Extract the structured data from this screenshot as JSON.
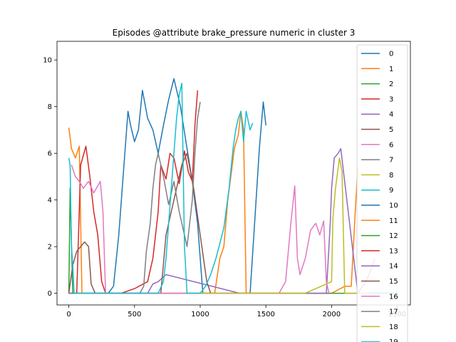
{
  "chart_data": {
    "type": "line",
    "title": "Episodes @attribute brake_pressure numeric in cluster 3",
    "xlabel": "",
    "ylabel": "",
    "xlim": [
      -90,
      2600
    ],
    "ylim": [
      -0.5,
      10.8
    ],
    "xticks": [
      0,
      500,
      1000,
      1500,
      2000,
      2500
    ],
    "yticks": [
      0,
      2,
      4,
      6,
      8,
      10
    ],
    "grid": false,
    "legend_position": "top-right",
    "colors": [
      "#1f77b4",
      "#ff7f0e",
      "#2ca02c",
      "#d62728",
      "#9467bd",
      "#8c564b",
      "#e377c2",
      "#7f7f7f",
      "#bcbd22",
      "#17becf"
    ],
    "series": [
      {
        "name": "0",
        "x": [
          0,
          250,
          300,
          340,
          380,
          420,
          450,
          470,
          500,
          530,
          560,
          600,
          640,
          680,
          720,
          760,
          800,
          850,
          900,
          940,
          980,
          1020,
          1100,
          1250,
          1380,
          1420,
          1450,
          1480,
          1500
        ],
        "y": [
          0,
          0,
          0,
          0.3,
          2.5,
          5.5,
          7.8,
          7.2,
          6.5,
          7.0,
          8.7,
          7.5,
          7.0,
          6.0,
          7.2,
          8.3,
          9.2,
          8.0,
          6.2,
          4.8,
          3.0,
          0,
          0,
          0,
          0,
          3.5,
          6.2,
          8.2,
          7.2
        ]
      },
      {
        "name": "1",
        "x": [
          0,
          20,
          50,
          80,
          100,
          130,
          170,
          250,
          300,
          500,
          900,
          1110,
          1150,
          1180,
          1210,
          1240,
          1260,
          1290,
          1310,
          1330,
          1350,
          1380,
          1450,
          1500,
          1560,
          1600,
          1680,
          1720,
          2000,
          2100,
          2150,
          2180,
          2200
        ],
        "y": [
          7.1,
          6.2,
          5.8,
          6.3,
          0,
          0,
          0,
          0,
          0,
          0,
          0,
          0,
          1.5,
          2.0,
          4.0,
          5.3,
          6.2,
          6.8,
          7.8,
          7.0,
          0,
          0,
          0,
          0,
          0,
          0,
          0,
          0,
          0,
          0.3,
          0.3,
          3.5,
          5.4
        ]
      },
      {
        "name": "2",
        "x": [
          0,
          10,
          30,
          2500
        ],
        "y": [
          0,
          4.5,
          0,
          0
        ]
      },
      {
        "name": "3",
        "x": [
          0,
          60,
          90,
          130,
          160,
          190,
          220,
          250,
          280,
          320,
          350,
          400,
          500,
          600,
          640,
          680,
          700,
          740,
          770,
          800,
          840,
          880,
          910,
          940,
          960,
          980
        ],
        "y": [
          0,
          0,
          5.5,
          6.3,
          5.0,
          3.5,
          2.5,
          0.5,
          0,
          0,
          0,
          0,
          0.2,
          0.5,
          1.5,
          3.5,
          5.5,
          4.9,
          6.0,
          5.8,
          4.7,
          6.1,
          5.2,
          4.8,
          7.2,
          8.7
        ]
      },
      {
        "name": "4",
        "x": [
          0,
          100,
          600,
          640,
          680,
          740,
          1300,
          1800,
          1850,
          1900,
          1940,
          1960,
          1990,
          2000,
          2020,
          2050,
          2070,
          2200,
          2260,
          2300,
          2330
        ],
        "y": [
          0,
          0,
          0,
          0.4,
          0.5,
          0.8,
          0,
          0,
          0,
          0,
          0,
          0,
          3.0,
          4.5,
          5.8,
          6.0,
          6.2,
          0,
          0.5,
          1.0,
          1.5
        ]
      },
      {
        "name": "5",
        "x": [
          0,
          30,
          60,
          90,
          120,
          150,
          170,
          200,
          300,
          600,
          650,
          700,
          740,
          780,
          820,
          860,
          900,
          950,
          1000,
          1050,
          1080,
          1110
        ],
        "y": [
          0,
          1.2,
          1.8,
          2.0,
          2.2,
          2.0,
          0.4,
          0,
          0,
          0,
          0,
          0,
          2.5,
          3.5,
          4.5,
          5.5,
          6.0,
          4.5,
          2.5,
          0.5,
          0,
          0
        ]
      },
      {
        "name": "6",
        "x": [
          20,
          50,
          80,
          110,
          150,
          190,
          240,
          260,
          280,
          1500,
          1600,
          1650,
          1690,
          1720,
          1740,
          1760,
          1800,
          1840,
          1880,
          1910,
          1940,
          1960,
          1980
        ],
        "y": [
          5.5,
          5.0,
          4.8,
          4.5,
          4.8,
          4.3,
          4.8,
          3.5,
          0,
          0,
          0,
          0.5,
          3.0,
          4.6,
          1.5,
          0.8,
          1.5,
          2.7,
          3.0,
          2.5,
          3.1,
          0.5,
          0
        ]
      },
      {
        "name": "7",
        "x": [
          0,
          400,
          540,
          570,
          590,
          620,
          640,
          660,
          680,
          700,
          720,
          760,
          800,
          840,
          880,
          900,
          920,
          940,
          960,
          980,
          1000
        ],
        "y": [
          0,
          0,
          0,
          0.3,
          1.8,
          3.0,
          4.5,
          5.5,
          6.0,
          5.5,
          5.0,
          3.8,
          4.8,
          3.5,
          2.5,
          2.0,
          3.0,
          4.0,
          6.0,
          7.5,
          8.2
        ]
      },
      {
        "name": "8",
        "x": [
          900,
          1000,
          1400,
          1800,
          2000,
          2010,
          2030,
          2060,
          2080,
          2100,
          2500
        ],
        "y": [
          0,
          0,
          0,
          0,
          0.5,
          3.2,
          4.5,
          5.8,
          5.2,
          0,
          0
        ]
      },
      {
        "name": "9",
        "x": [
          0,
          10,
          20,
          30,
          40,
          600,
          680,
          720,
          740,
          760,
          780,
          800,
          820,
          840,
          860,
          880,
          900,
          1000,
          1040,
          1080,
          1120,
          1180,
          1220,
          1250,
          1270,
          1290,
          1310,
          1330,
          1350,
          1380,
          1400
        ],
        "y": [
          5.8,
          5.5,
          2.0,
          1.2,
          0,
          0,
          0,
          0.5,
          1.5,
          3.0,
          4.5,
          6.0,
          7.5,
          8.5,
          9.0,
          2.0,
          0,
          0,
          0.3,
          0.8,
          1.5,
          2.8,
          4.5,
          6.2,
          7.0,
          7.5,
          7.8,
          6.5,
          7.8,
          7.0,
          7.3
        ]
      },
      {
        "name": "10",
        "x": [
          2400,
          2450,
          2500
        ],
        "y": [
          0,
          0,
          0
        ]
      },
      {
        "name": "11",
        "x": [
          2300,
          2400,
          2500
        ],
        "y": [
          0,
          0,
          0
        ]
      },
      {
        "name": "12",
        "x": [
          2300,
          2400,
          2500
        ],
        "y": [
          0,
          0,
          0
        ]
      },
      {
        "name": "13",
        "x": [
          2300,
          2400,
          2500
        ],
        "y": [
          0,
          0,
          0
        ]
      },
      {
        "name": "14",
        "x": [
          2300,
          2400,
          2500
        ],
        "y": [
          0,
          0,
          0
        ]
      },
      {
        "name": "15",
        "x": [
          2300,
          2400,
          2500
        ],
        "y": [
          0,
          0,
          0
        ]
      },
      {
        "name": "16",
        "x": [
          2300,
          2400,
          2500
        ],
        "y": [
          0,
          0,
          0
        ]
      },
      {
        "name": "17",
        "x": [
          2300,
          2400,
          2500
        ],
        "y": [
          0,
          0,
          0
        ]
      },
      {
        "name": "18",
        "x": [
          2300,
          2400,
          2500
        ],
        "y": [
          0,
          0,
          0
        ]
      },
      {
        "name": "19",
        "x": [
          2300,
          2400,
          2500
        ],
        "y": [
          0,
          0,
          0
        ]
      }
    ]
  }
}
